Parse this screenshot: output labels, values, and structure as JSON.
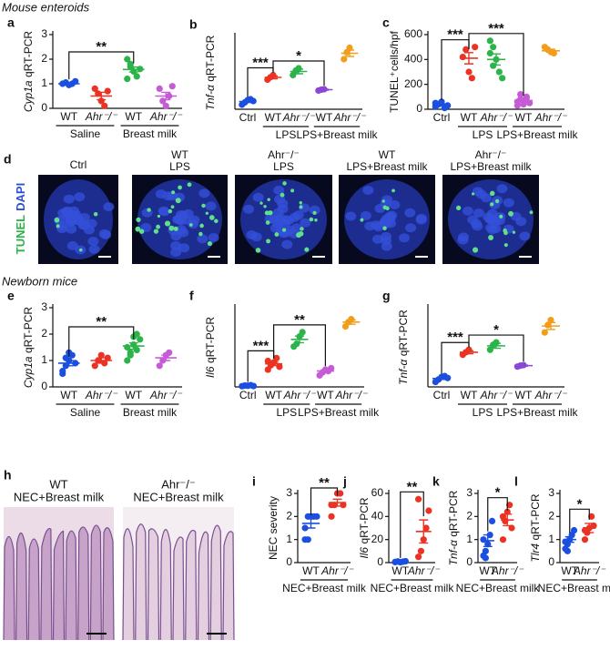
{
  "sections": [
    "Mouse enteroids",
    "Newborn mice"
  ],
  "images_d": {
    "panel": "d",
    "channels": [
      "TUNEL",
      "DAPI"
    ],
    "columns": [
      {
        "lines": [
          "Ctrl"
        ]
      },
      {
        "lines": [
          "WT",
          "LPS"
        ]
      },
      {
        "lines": [
          "Ahr⁻/⁻",
          "LPS"
        ]
      },
      {
        "lines": [
          "WT",
          "LPS+Breast milk"
        ]
      },
      {
        "lines": [
          "Ahr⁻/⁻",
          "LPS+Breast milk"
        ]
      }
    ]
  },
  "images_h": {
    "panel": "h",
    "columns": [
      {
        "lines": [
          "WT",
          "NEC+Breast milk"
        ]
      },
      {
        "lines": [
          "Ahr⁻/⁻",
          "NEC+Breast milk"
        ]
      }
    ]
  },
  "chart_data": [
    {
      "type": "dot",
      "panel": "a",
      "ylabel": {
        "gene": "Cyp1a",
        "text": " qRT-PCR"
      },
      "ylim": [
        0,
        3
      ],
      "yticks": [
        0,
        1,
        2,
        3
      ],
      "series": [
        {
          "name": "WT",
          "color": "#1a4fe0",
          "values": [
            1.0,
            1.05,
            0.95,
            1.0,
            1.1
          ],
          "mean": 1.0,
          "sem": 0.03
        },
        {
          "name": "Ahr⁻/⁻",
          "color": "#ea3323",
          "values": [
            0.8,
            0.6,
            0.3,
            0.1,
            0.7
          ],
          "mean": 0.5,
          "sem": 0.15
        },
        {
          "name": "WT",
          "color": "#2cb34a",
          "values": [
            2.0,
            1.7,
            1.5,
            1.3,
            1.6,
            1.2,
            1.8
          ],
          "mean": 1.58,
          "sem": 0.1
        },
        {
          "name": "Ahr⁻/⁻",
          "color": "#c65bd6",
          "values": [
            0.8,
            0.3,
            0.1,
            0.5,
            0.9
          ],
          "mean": 0.5,
          "sem": 0.15
        }
      ],
      "groups": [
        {
          "label": "Saline",
          "span": [
            0,
            1
          ]
        },
        {
          "label": "Breast milk",
          "span": [
            2,
            3
          ]
        }
      ],
      "comparisons": [
        {
          "label": "**",
          "span": [
            0,
            2
          ]
        }
      ]
    },
    {
      "type": "dot",
      "panel": "b",
      "ylabel": {
        "gene": "Tnf-α",
        "text": " qRT-PCR"
      },
      "ylim": [
        0,
        16
      ],
      "series": [
        {
          "name": "Ctrl",
          "color": "#1a4fe0",
          "values": [
            1.0,
            1.5,
            2.0,
            2.2,
            1.8
          ],
          "mean": 1.7,
          "sem": 0.2
        },
        {
          "name": "WT",
          "color": "#ea3323",
          "values": [
            6.5,
            7,
            7.5
          ],
          "mean": 7,
          "sem": 0.3
        },
        {
          "name": "Ahr⁻/⁻",
          "color": "#2cb34a",
          "values": [
            7.5,
            8.5,
            9
          ],
          "mean": 8.3,
          "sem": 0.5
        },
        {
          "name": "WT",
          "color": "#8b47d6",
          "values": [
            4.1,
            4.3,
            4.4
          ],
          "mean": 4.3,
          "sem": 0.1
        },
        {
          "name": "Ahr⁻/⁻",
          "color": "#f29d1c",
          "values": [
            11,
            12.5,
            13.5
          ],
          "mean": 12.3,
          "sem": 0.7
        }
      ],
      "groups": [
        {
          "label": "LPS",
          "span": [
            1,
            2
          ]
        },
        {
          "label": "LPS+Breast milk",
          "span": [
            3,
            4
          ]
        }
      ],
      "comparisons": [
        {
          "label": "***",
          "span": [
            0,
            1
          ]
        },
        {
          "label": "*",
          "span": [
            1,
            3
          ]
        }
      ]
    },
    {
      "type": "dot",
      "panel": "c",
      "ylabel": {
        "text": "TUNEL⁺cells/hpf"
      },
      "ylim": [
        0,
        600
      ],
      "yticks": [
        0,
        200,
        400,
        600
      ],
      "series": [
        {
          "name": "Ctrl",
          "color": "#1a4fe0",
          "values": [
            20,
            40,
            60,
            10,
            30,
            50
          ],
          "mean": 35,
          "sem": 8
        },
        {
          "name": "WT",
          "color": "#ea3323",
          "values": [
            420,
            480,
            300,
            250,
            500
          ],
          "mean": 410,
          "sem": 45
        },
        {
          "name": "Ahr⁻/⁻",
          "color": "#2cb34a",
          "values": [
            450,
            500,
            400,
            300,
            250,
            550,
            350
          ],
          "mean": 400,
          "sem": 45
        },
        {
          "name": "WT",
          "color": "#c65bd6",
          "values": [
            60,
            80,
            40,
            100,
            50,
            30,
            120,
            70,
            90
          ],
          "mean": 70,
          "sem": 10
        },
        {
          "name": "Ahr⁻/⁻",
          "color": "#f29d1c",
          "values": [
            500,
            480,
            460,
            450
          ],
          "mean": 470,
          "sem": 12
        }
      ],
      "groups": [
        {
          "label": "LPS",
          "span": [
            1,
            2
          ]
        },
        {
          "label": "LPS+Breast milk",
          "span": [
            3,
            4
          ]
        }
      ],
      "comparisons": [
        {
          "label": "***",
          "span": [
            0,
            1
          ]
        },
        {
          "label": "***",
          "span": [
            1,
            3
          ]
        }
      ]
    },
    {
      "type": "dot",
      "panel": "e",
      "ylabel": {
        "gene": "Cyp1a",
        "text": " qRT-PCR"
      },
      "ylim": [
        0,
        3
      ],
      "yticks": [
        0,
        1,
        2,
        3
      ],
      "series": [
        {
          "name": "WT",
          "color": "#1a4fe0",
          "values": [
            0.5,
            0.8,
            1.0,
            1.2,
            0.9,
            0.6,
            1.1,
            1.3
          ],
          "mean": 0.9,
          "sem": 0.1
        },
        {
          "name": "Ahr⁻/⁻",
          "color": "#ea3323",
          "values": [
            0.8,
            1.0,
            1.2,
            0.9,
            1.1
          ],
          "mean": 1.0,
          "sem": 0.1
        },
        {
          "name": "WT",
          "color": "#2cb34a",
          "values": [
            1.0,
            1.3,
            1.6,
            2.0,
            1.8,
            1.5,
            1.2,
            1.9,
            1.4
          ],
          "mean": 1.55,
          "sem": 0.12
        },
        {
          "name": "Ahr⁻/⁻",
          "color": "#c65bd6",
          "values": [
            0.8,
            1.0,
            1.2,
            1.3
          ],
          "mean": 1.1,
          "sem": 0.1
        }
      ],
      "groups": [
        {
          "label": "Saline",
          "span": [
            0,
            1
          ]
        },
        {
          "label": "Breast milk",
          "span": [
            2,
            3
          ]
        }
      ],
      "comparisons": [
        {
          "label": "**",
          "span": [
            0,
            2
          ]
        }
      ]
    },
    {
      "type": "dot",
      "panel": "f",
      "ylabel": {
        "gene": "Il6",
        "text": " qRT-PCR"
      },
      "ylim": [
        0,
        55
      ],
      "series": [
        {
          "name": "Ctrl",
          "color": "#1a4fe0",
          "values": [
            0.5,
            1,
            0.8,
            1.2,
            0.6
          ],
          "mean": 0.8,
          "sem": 0.1
        },
        {
          "name": "WT",
          "color": "#ea3323",
          "values": [
            12,
            15,
            17,
            20,
            14,
            18
          ],
          "mean": 16,
          "sem": 1.2
        },
        {
          "name": "Ahr⁻/⁻",
          "color": "#2cb34a",
          "values": [
            28,
            30,
            35,
            38
          ],
          "mean": 33,
          "sem": 2.3
        },
        {
          "name": "WT",
          "color": "#c65bd6",
          "values": [
            8,
            10,
            12,
            11,
            13
          ],
          "mean": 11,
          "sem": 0.9
        },
        {
          "name": "Ahr⁻/⁻",
          "color": "#f29d1c",
          "values": [
            42,
            45,
            47
          ],
          "mean": 45,
          "sem": 1.5
        }
      ],
      "groups": [
        {
          "label": "LPS",
          "span": [
            1,
            2
          ]
        },
        {
          "label": "LPS+Breast milk",
          "span": [
            3,
            4
          ]
        }
      ],
      "comparisons": [
        {
          "label": "***",
          "span": [
            0,
            1
          ]
        },
        {
          "label": "**",
          "span": [
            1,
            3
          ]
        }
      ]
    },
    {
      "type": "dot",
      "panel": "g",
      "ylabel": {
        "gene": "Tnf-α",
        "text": " qRT-PCR"
      },
      "ylim": [
        0,
        16
      ],
      "series": [
        {
          "name": "Ctrl",
          "color": "#1a4fe0",
          "values": [
            1.0,
            1.5,
            2.0,
            2.2,
            1.8
          ],
          "mean": 1.7,
          "sem": 0.2
        },
        {
          "name": "WT",
          "color": "#ea3323",
          "values": [
            6.5,
            7,
            7.5
          ],
          "mean": 7,
          "sem": 0.3
        },
        {
          "name": "Ahr⁻/⁻",
          "color": "#2cb34a",
          "values": [
            7.5,
            8.5,
            9
          ],
          "mean": 8.3,
          "sem": 0.5
        },
        {
          "name": "WT",
          "color": "#8b47d6",
          "values": [
            4.1,
            4.3,
            4.4
          ],
          "mean": 4.3,
          "sem": 0.1
        },
        {
          "name": "Ahr⁻/⁻",
          "color": "#f29d1c",
          "values": [
            11,
            12.5,
            13.5
          ],
          "mean": 12.3,
          "sem": 0.7
        }
      ],
      "groups": [
        {
          "label": "LPS",
          "span": [
            1,
            2
          ]
        },
        {
          "label": "LPS+Breast milk",
          "span": [
            3,
            4
          ]
        }
      ],
      "comparisons": [
        {
          "label": "***",
          "span": [
            0,
            1
          ]
        },
        {
          "label": "*",
          "span": [
            1,
            3
          ]
        }
      ]
    },
    {
      "type": "dot",
      "panel": "i",
      "ylabel": {
        "text": "NEC severity"
      },
      "ylim": [
        0,
        3
      ],
      "yticks": [
        0,
        1,
        2,
        3
      ],
      "series": [
        {
          "name": "WT",
          "color": "#1a4fe0",
          "values": [
            1,
            1,
            2,
            2,
            2,
            1.5,
            2
          ],
          "mean": 1.7,
          "sem": 0.2
        },
        {
          "name": "Ahr⁻/⁻",
          "color": "#ea3323",
          "values": [
            2,
            2.5,
            3,
            3,
            2.5,
            2.5
          ],
          "mean": 2.6,
          "sem": 0.15
        }
      ],
      "groups": [
        {
          "label": "NEC+Breast milk",
          "span": [
            0,
            1
          ]
        }
      ],
      "comparisons": [
        {
          "label": "**",
          "span": [
            0,
            1
          ]
        }
      ]
    },
    {
      "type": "dot",
      "panel": "j",
      "ylabel": {
        "gene": "Il6",
        "text": " qRT-PCR"
      },
      "ylim": [
        0,
        60
      ],
      "yticks": [
        0,
        20,
        40,
        60
      ],
      "series": [
        {
          "name": "WT",
          "color": "#1a4fe0",
          "values": [
            0.5,
            1,
            0.3,
            0.8,
            1.2,
            0.5
          ],
          "mean": 0.7,
          "sem": 0.15
        },
        {
          "name": "Ahr⁻/⁻",
          "color": "#ea3323",
          "values": [
            5,
            10,
            20,
            30,
            45,
            55
          ],
          "mean": 27,
          "sem": 10
        }
      ],
      "groups": [
        {
          "label": "NEC+Breast milk",
          "span": [
            0,
            1
          ]
        }
      ],
      "comparisons": [
        {
          "label": "**",
          "span": [
            0,
            1
          ]
        }
      ]
    },
    {
      "type": "dot",
      "panel": "k",
      "ylabel": {
        "gene": "Tnf-α",
        "text": " qRT-PCR"
      },
      "ylim": [
        0,
        3
      ],
      "yticks": [
        0,
        1,
        2,
        3
      ],
      "series": [
        {
          "name": "WT",
          "color": "#1a4fe0",
          "values": [
            0.3,
            0.5,
            0.8,
            1.2,
            1.8,
            1.0,
            0.2
          ],
          "mean": 0.95,
          "sem": 0.25
        },
        {
          "name": "Ahr⁻/⁻",
          "color": "#ea3323",
          "values": [
            1.0,
            1.8,
            2.2,
            2.5,
            1.5,
            2.0
          ],
          "mean": 1.85,
          "sem": 0.25
        }
      ],
      "groups": [
        {
          "label": "NEC+Breast milk",
          "span": [
            0,
            1
          ]
        }
      ],
      "comparisons": [
        {
          "label": "*",
          "span": [
            0,
            1
          ]
        }
      ]
    },
    {
      "type": "dot",
      "panel": "l",
      "ylabel": {
        "gene": "Tlr4",
        "text": " qRT-PCR"
      },
      "ylim": [
        0,
        3
      ],
      "yticks": [
        0,
        1,
        2,
        3
      ],
      "series": [
        {
          "name": "WT",
          "color": "#1a4fe0",
          "values": [
            0.6,
            0.8,
            1.0,
            1.2,
            1.4,
            0.9,
            0.5
          ],
          "mean": 1.0,
          "sem": 0.12
        },
        {
          "name": "Ahr⁻/⁻",
          "color": "#ea3323",
          "values": [
            1.0,
            1.3,
            1.5,
            2.0,
            1.6,
            1.4
          ],
          "mean": 1.5,
          "sem": 0.2
        }
      ],
      "groups": [
        {
          "label": "NEC+Breast milk",
          "span": [
            0,
            1
          ]
        }
      ],
      "comparisons": [
        {
          "label": "*",
          "span": [
            0,
            1
          ]
        }
      ]
    }
  ]
}
